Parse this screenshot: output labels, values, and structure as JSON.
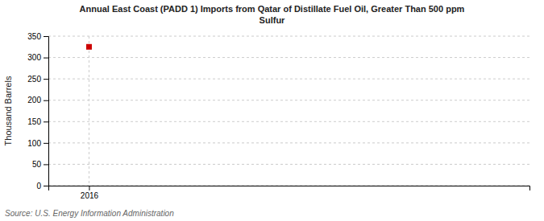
{
  "chart_data": {
    "type": "scatter",
    "title": "Annual East Coast (PADD 1) Imports from Qatar of Distillate Fuel Oil, Greater Than 500 ppm\nSulfur",
    "y_label": "Thousand Barrels",
    "annotations": [
      "Source: U.S. Energy Information Administration"
    ],
    "x": [
      2016
    ],
    "values": [
      325
    ],
    "color": "#cc0000",
    "marker": "square",
    "xlim": [
      2015.4,
      2022.5
    ],
    "xticks": [
      2016
    ],
    "ylim": [
      0,
      350
    ],
    "yticks": [
      0,
      50,
      100,
      150,
      200,
      250,
      300,
      350
    ],
    "grid": true
  }
}
